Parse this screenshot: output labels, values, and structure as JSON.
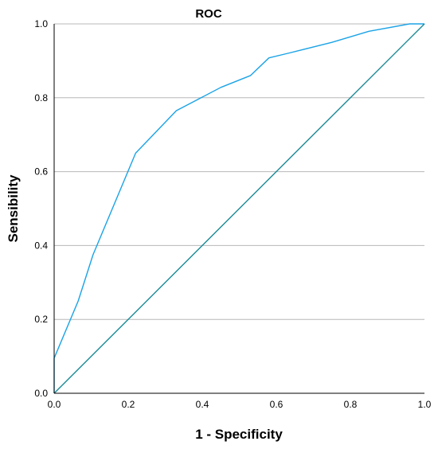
{
  "chart_data": {
    "type": "line",
    "title": "ROC",
    "xlabel": "1 - Specificity",
    "ylabel": "Sensibility",
    "xlim": [
      0.0,
      1.0
    ],
    "ylim": [
      0.0,
      1.0
    ],
    "x_ticks": [
      "0.0",
      "0.2",
      "0.4",
      "0.6",
      "0.8",
      "1.0"
    ],
    "y_ticks": [
      "0.0",
      "0.2",
      "0.4",
      "0.6",
      "0.8",
      "1.0"
    ],
    "grid": "horizontal",
    "series": [
      {
        "color": "#1ba3e6",
        "points": [
          [
            0.0,
            0.0
          ],
          [
            0.0,
            0.095
          ],
          [
            0.065,
            0.25
          ],
          [
            0.105,
            0.375
          ],
          [
            0.22,
            0.65
          ],
          [
            0.33,
            0.765
          ],
          [
            0.45,
            0.828
          ],
          [
            0.53,
            0.86
          ],
          [
            0.58,
            0.908
          ],
          [
            0.63,
            0.92
          ],
          [
            0.75,
            0.95
          ],
          [
            0.85,
            0.98
          ],
          [
            0.96,
            1.0
          ],
          [
            1.0,
            1.0
          ]
        ]
      },
      {
        "color": "#1a8a96",
        "points": [
          [
            0.0,
            0.0
          ],
          [
            1.0,
            1.0
          ]
        ]
      }
    ]
  }
}
